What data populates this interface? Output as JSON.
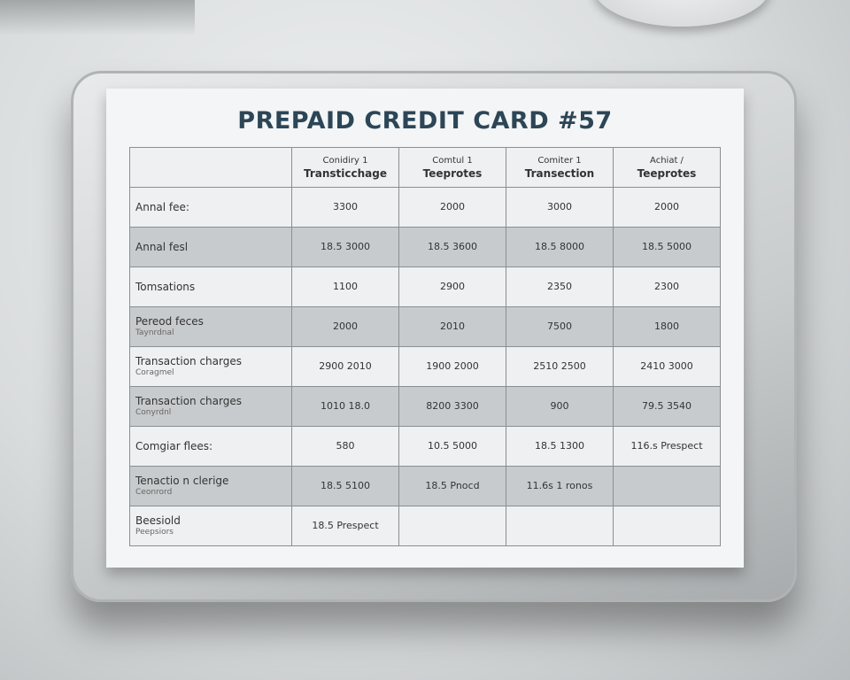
{
  "title": "PREPAID CREDIT CARD #57",
  "columns": [
    {
      "sub": "Conidiry 1",
      "name": "Transticchage"
    },
    {
      "sub": "Comtul 1",
      "name": "Teeprotes"
    },
    {
      "sub": "Comiter 1",
      "name": "Transection"
    },
    {
      "sub": "Achiat /",
      "name": "Teeprotes"
    }
  ],
  "rows": [
    {
      "label": "Annal fee:",
      "sub": "",
      "values": [
        "3300",
        "2000",
        "3000",
        "2000"
      ]
    },
    {
      "label": "Annal fesl",
      "sub": "",
      "values": [
        "18.5 3000",
        "18.5 3600",
        "18.5 8000",
        "18.5 5000"
      ]
    },
    {
      "label": "Tomsations",
      "sub": "",
      "values": [
        "1100",
        "2900",
        "2350",
        "2300"
      ]
    },
    {
      "label": "Pereod feces",
      "sub": "Taynrdnal",
      "values": [
        "2000",
        "2010",
        "7500",
        "1800"
      ]
    },
    {
      "label": "Transaction charges",
      "sub": "Coragmel",
      "values": [
        "2900 2010",
        "1900 2000",
        "2510 2500",
        "2410 3000"
      ]
    },
    {
      "label": "Transaction charges",
      "sub": "Conyrdnl",
      "values": [
        "1010 18.0",
        "8200 3300",
        "900",
        "79.5 3540"
      ]
    },
    {
      "label": "Comgiar flees:",
      "sub": "",
      "values": [
        "580",
        "10.5 5000",
        "18.5 1300",
        "116.s Prespect"
      ]
    },
    {
      "label": "Tenactio n clerige",
      "sub": "Ceonrord",
      "values": [
        "18.5 5100",
        "18.5 Pnocd",
        "11.6s 1 ronos",
        ""
      ]
    },
    {
      "label": "Beesiold",
      "sub": "Peepsiors",
      "values": [
        "18.5 Prespect",
        "",
        "",
        ""
      ]
    }
  ]
}
